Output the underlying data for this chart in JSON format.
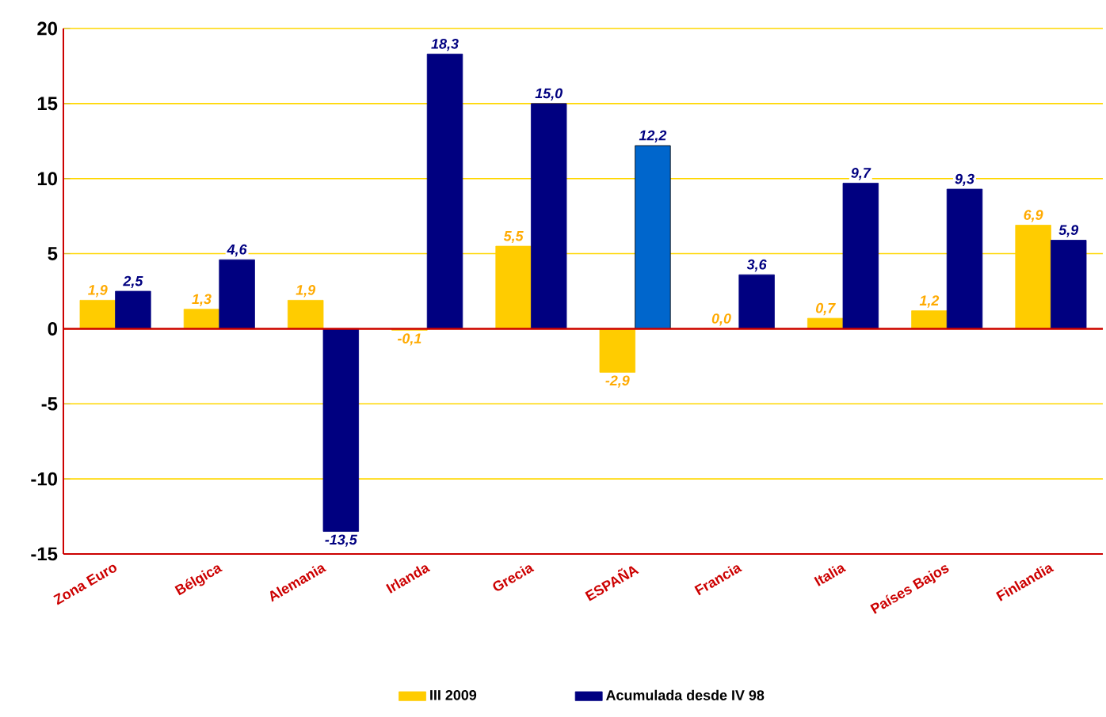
{
  "chart_data": {
    "type": "bar",
    "categories": [
      "Zona Euro",
      "Bélgica",
      "Alemania",
      "Irlanda",
      "Grecia",
      "ESPAÑA",
      "Francia",
      "Italia",
      "Países Bajos",
      "Finlandia"
    ],
    "series": [
      {
        "name": "III 2009",
        "color": "#ffcc00",
        "values": [
          1.9,
          1.3,
          1.9,
          -0.1,
          5.5,
          -2.9,
          0.0,
          0.7,
          1.2,
          6.9
        ],
        "value_labels": [
          "1,9",
          "1,3",
          "1,9",
          "-0,1",
          "5,5",
          "-2,9",
          "0,0",
          "0,7",
          "1,2",
          "6,9"
        ]
      },
      {
        "name": "Acumulada desde IV 98",
        "color": "#000080",
        "colors": [
          "#000080",
          "#000080",
          "#000080",
          "#000080",
          "#000080",
          "#0066cc",
          "#000080",
          "#000080",
          "#000080",
          "#000080"
        ],
        "values": [
          2.5,
          4.6,
          -13.5,
          18.3,
          15.0,
          12.2,
          3.6,
          9.7,
          9.3,
          5.9
        ],
        "value_labels": [
          "2,5",
          "4,6",
          "-13,5",
          "18,3",
          "15,0",
          "12,2",
          "3,6",
          "9,7",
          "9,3",
          "5,9"
        ]
      }
    ],
    "ylim": [
      -15,
      20
    ],
    "yticks": [
      -15,
      -10,
      -5,
      0,
      5,
      10,
      15,
      20
    ],
    "ref_lines": [
      {
        "axis": "y",
        "value": 0,
        "color": "#cc0000"
      }
    ],
    "grid": "y",
    "legend": "bottom"
  }
}
